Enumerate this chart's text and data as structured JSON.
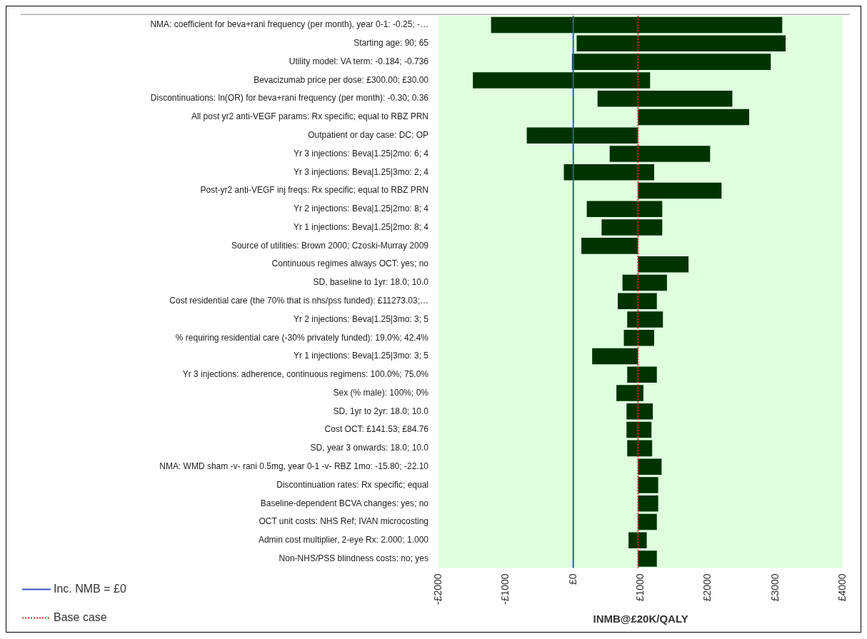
{
  "chart_data": {
    "type": "bar",
    "orientation": "horizontal",
    "xlabel": "INMB@£20K/QALY",
    "categories": [
      "NMA: coefficient for beva+rani frequency (per month), year 0-1: -0.25; -…",
      "Starting age: 90; 65",
      "Utility model: VA term: -0.184; -0.736",
      "Bevacizumab price per dose: £300.00; £30.00",
      "Discontinuations: ln(OR) for beva+rani frequency (per month): -0.30; 0.36",
      "All post yr2 anti-VEGF params: Rx specific; equal to RBZ PRN",
      "Outpatient or day case: DC; OP",
      "Yr 3 injections: Beva|1.25|2mo: 6; 4",
      "Yr 3 injections: Beva|1.25|3mo: 2; 4",
      "Post-yr2 anti-VEGF inj freqs: Rx specific; equal to RBZ PRN",
      "Yr 2 injections: Beva|1.25|2mo: 8; 4",
      "Yr 1 injections: Beva|1.25|2mo: 8; 4",
      "Source of utilities: Brown 2000; Czoski-Murray 2009",
      "Continuous regimes always OCT: yes; no",
      "SD, baseline to 1yr: 18.0; 10.0",
      "Cost residential care (the 70% that is nhs/pss funded): £11273.03;…",
      "Yr 2 injections: Beva|1.25|3mo: 3; 5",
      "% requiring residential care (-30% privately funded): 19.0%; 42.4%",
      "Yr 1 injections: Beva|1.25|3mo: 3; 5",
      "Yr 3 injections: adherence, continuous regimens: 100.0%; 75.0%",
      "Sex (% male): 100%; 0%",
      "SD, 1yr to 2yr: 18.0; 10.0",
      "Cost OCT: £141.53; £84.76",
      "SD, year 3 onwards: 18.0; 10.0",
      "NMA: WMD sham -v- rani 0.5mg, year 0-1 -v- RBZ 1mo: -15.80; -22.10",
      "Discontinuation rates: Rx specific; equal",
      "Baseline-dependent BCVA changes: yes; no",
      "OCT unit costs: NHS Ref; IVAN microcosting",
      "Admin cost multiplier, 2-eye Rx: 2.000; 1.000",
      "Non-NHS/PSS blindness costs: no; yes"
    ],
    "base": [
      -1220,
      50,
      -20,
      -1490,
      360,
      960,
      -690,
      540,
      -140,
      960,
      200,
      420,
      120,
      960,
      730,
      660,
      800,
      750,
      280,
      800,
      640,
      790,
      790,
      800,
      960,
      960,
      960,
      960,
      820,
      960
    ],
    "values": [
      4320,
      3100,
      2950,
      2630,
      2000,
      1650,
      1650,
      1490,
      1340,
      1240,
      1120,
      900,
      840,
      750,
      660,
      580,
      530,
      450,
      680,
      440,
      400,
      390,
      370,
      370,
      350,
      300,
      300,
      280,
      270,
      280
    ],
    "color": "#003300",
    "xlim": [
      -2000,
      4000
    ],
    "xticks": [
      {
        "value": -2000,
        "label": "-£2000"
      },
      {
        "value": -1000,
        "label": "-£1000"
      },
      {
        "value": 0,
        "label": "£0"
      },
      {
        "value": 1000,
        "label": "£1000"
      },
      {
        "value": 2000,
        "label": "£2000"
      },
      {
        "value": 3000,
        "label": "£3000"
      },
      {
        "value": 4000,
        "label": "£4000"
      }
    ],
    "ref_lines": [
      {
        "axis": "x",
        "value": 0,
        "label": "Inc. NMB = £0",
        "color": "#3355cc",
        "line_style": "solid"
      },
      {
        "axis": "x",
        "value": 960,
        "label": "Base case",
        "color": "#cc3322",
        "line_style": "dotted"
      }
    ],
    "legend": "bottom left",
    "grid": false
  }
}
